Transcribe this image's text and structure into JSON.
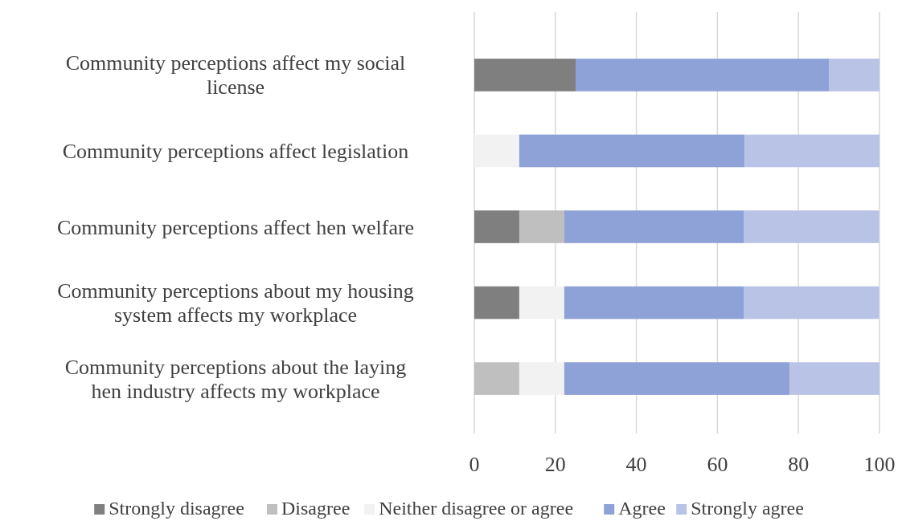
{
  "chart_data": {
    "type": "bar",
    "orientation": "horizontal",
    "stacked": true,
    "categories": [
      "Community perceptions affect my social license",
      "Community perceptions affect legislation",
      "Community perceptions affect hen welfare",
      "Community perceptions about my housing system affects my workplace",
      "Community perceptions about the laying hen industry affects my workplace"
    ],
    "series": [
      {
        "name": "Strongly disagree",
        "color": "#7f7f7f",
        "values": [
          25,
          0,
          11.1,
          11.1,
          0
        ]
      },
      {
        "name": "Disagree",
        "color": "#bfbfbf",
        "values": [
          0,
          0,
          11.1,
          0,
          11.1
        ]
      },
      {
        "name": "Neither disagree or agree",
        "color": "#f2f2f2",
        "values": [
          0,
          11.1,
          0,
          11.1,
          11.1
        ]
      },
      {
        "name": "Agree",
        "color": "#8fa2d8",
        "values": [
          62.5,
          55.6,
          44.4,
          44.4,
          55.6
        ]
      },
      {
        "name": "Strongly agree",
        "color": "#b8c3e6",
        "values": [
          12.5,
          33.3,
          33.3,
          33.3,
          22.2
        ]
      }
    ],
    "xlim": [
      0,
      100
    ],
    "xticks": [
      0,
      20,
      40,
      60,
      80,
      100
    ],
    "grid": "x",
    "legend": "bottom"
  }
}
